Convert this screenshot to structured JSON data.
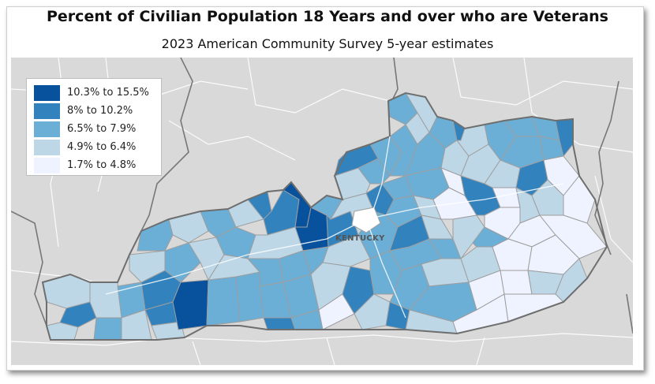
{
  "title": "Percent of Civilian Population 18 Years and over who are Veterans",
  "subtitle": "2023 American Community Survey 5-year estimates",
  "state_label": "KENTUCKY",
  "legend": [
    {
      "label": "10.3% to 15.5%",
      "color": "#08519c"
    },
    {
      "label": "8% to 10.2%",
      "color": "#3182bd"
    },
    {
      "label": "6.5% to 7.9%",
      "color": "#6baed6"
    },
    {
      "label": "4.9% to 6.4%",
      "color": "#bdd7e7"
    },
    {
      "label": "1.7% to 4.8%",
      "color": "#eff3ff"
    }
  ],
  "colors": {
    "background_map": "#d9d9d9",
    "county_border": "#9e9e9e",
    "road": "#ffffff",
    "state_border": "#6e6e6e"
  }
}
